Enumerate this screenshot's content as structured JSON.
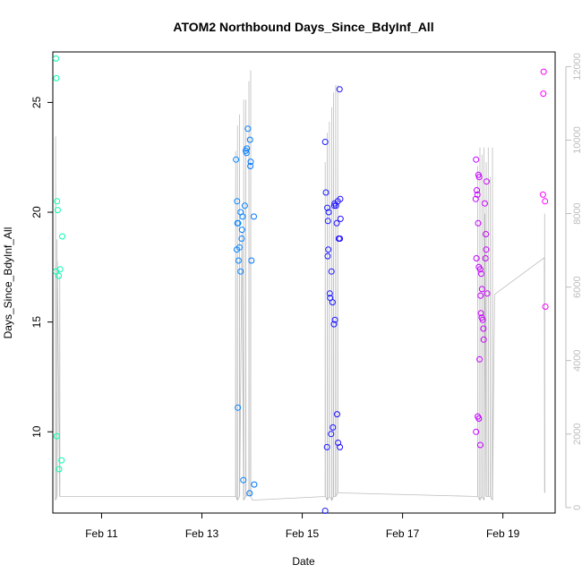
{
  "chart_data": {
    "type": "scatter",
    "title": "ATOM2 Northbound Days_Since_BdyInf_All",
    "xlabel": "Date",
    "ylabel": "Days_Since_BdyInf_All",
    "x_ticks": [
      "Feb 11",
      "Feb 13",
      "Feb 15",
      "Feb 17",
      "Feb 19"
    ],
    "xlim": [
      "Feb 10 00:40",
      "Feb 20 01:00"
    ],
    "ylim": [
      6.3,
      27.3
    ],
    "y_ticks": [
      "10",
      "15",
      "20",
      "25"
    ],
    "y2lim": [
      -150,
      12400
    ],
    "y2_ticks": [
      "0",
      "2000",
      "4000",
      "6000",
      "8000",
      "10000",
      "12000"
    ],
    "grid": false,
    "legend": "none",
    "colors": {
      "line": "#bdbdbd",
      "axis": "#000000",
      "right_axis": "#bdbdbd",
      "point_palette": [
        "#00ffaa",
        "#22ddff",
        "#0077ff",
        "#2200ff",
        "#aa00ff",
        "#ff00ff"
      ]
    },
    "line_anchors": [
      [
        "Feb 10 01:55",
        6600
      ],
      [
        "Feb 10 02:50",
        6700
      ],
      [
        "Feb 13 17:00",
        7100
      ],
      [
        "Feb 13 19:10",
        7500
      ],
      [
        "Feb 14 00:10",
        200
      ],
      [
        "Feb 15 13:00",
        7400
      ],
      [
        "Feb 15 17:00",
        10000
      ],
      [
        "Feb 18 15:20",
        8000
      ],
      [
        "Feb 18 20:00",
        5800
      ],
      [
        "Feb 19 19:50",
        6800
      ]
    ],
    "line_spikes": [
      [
        "Feb 10 02:00",
        10100,
        200
      ],
      [
        "Feb 10 02:40",
        7300,
        300
      ],
      [
        "Feb 10 04:00",
        6300,
        300
      ],
      [
        "Feb 13 16:10",
        9700,
        300
      ],
      [
        "Feb 13 17:00",
        10400,
        200
      ],
      [
        "Feb 13 18:00",
        10700,
        300
      ],
      [
        "Feb 13 20:00",
        11100,
        200
      ],
      [
        "Feb 13 21:00",
        11100,
        300
      ],
      [
        "Feb 13 22:30",
        11600,
        400
      ],
      [
        "Feb 13 23:20",
        11900,
        300
      ],
      [
        "Feb 15 11:00",
        9400,
        300
      ],
      [
        "Feb 15 12:00",
        10200,
        200
      ],
      [
        "Feb 15 13:00",
        10500,
        300
      ],
      [
        "Feb 15 14:10",
        10900,
        200
      ],
      [
        "Feb 15 15:00",
        11300,
        300
      ],
      [
        "Feb 15 16:00",
        11500,
        300
      ],
      [
        "Feb 15 17:00",
        11500,
        400
      ],
      [
        "Feb 18 12:00",
        9300,
        300
      ],
      [
        "Feb 18 13:00",
        9800,
        200
      ],
      [
        "Feb 18 14:00",
        9600,
        300
      ],
      [
        "Feb 18 15:00",
        9800,
        200
      ],
      [
        "Feb 18 16:00",
        9400,
        300
      ],
      [
        "Feb 18 17:00",
        9800,
        300
      ],
      [
        "Feb 18 18:00",
        9000,
        300
      ],
      [
        "Feb 18 19:00",
        9800,
        200
      ],
      [
        "Feb 19 20:00",
        8000,
        400
      ]
    ],
    "points": [
      [
        "Feb 10 02:10",
        27.0
      ],
      [
        "Feb 10 02:20",
        26.1
      ],
      [
        "Feb 10 02:40",
        20.5
      ],
      [
        "Feb 10 03:00",
        20.1
      ],
      [
        "Feb 10 05:10",
        18.9
      ],
      [
        "Feb 10 02:10",
        17.3
      ],
      [
        "Feb 10 04:10",
        17.4
      ],
      [
        "Feb 10 03:30",
        17.1
      ],
      [
        "Feb 10 02:30",
        9.8
      ],
      [
        "Feb 10 04:50",
        8.7
      ],
      [
        "Feb 10 03:40",
        8.3
      ],
      [
        "Feb 13 16:20",
        22.4
      ],
      [
        "Feb 13 16:50",
        20.5
      ],
      [
        "Feb 13 17:00",
        19.5
      ],
      [
        "Feb 13 17:20",
        19.5
      ],
      [
        "Feb 13 16:40",
        18.3
      ],
      [
        "Feb 13 18:00",
        18.4
      ],
      [
        "Feb 13 17:30",
        17.8
      ],
      [
        "Feb 13 18:30",
        17.3
      ],
      [
        "Feb 13 18:30",
        20.0
      ],
      [
        "Feb 13 19:30",
        19.8
      ],
      [
        "Feb 13 20:30",
        20.3
      ],
      [
        "Feb 13 19:10",
        19.2
      ],
      [
        "Feb 13 19:00",
        18.8
      ],
      [
        "Feb 13 21:00",
        22.8
      ],
      [
        "Feb 13 21:30",
        22.9
      ],
      [
        "Feb 13 22:00",
        23.8
      ],
      [
        "Feb 13 21:20",
        22.7
      ],
      [
        "Feb 13 23:00",
        23.3
      ],
      [
        "Feb 13 23:20",
        22.3
      ],
      [
        "Feb 13 23:10",
        22.1
      ],
      [
        "Feb 13 23:40",
        17.8
      ],
      [
        "Feb 14 00:50",
        19.8
      ],
      [
        "Feb 13 17:10",
        11.1
      ],
      [
        "Feb 13 19:50",
        7.8
      ],
      [
        "Feb 13 22:50",
        7.2
      ],
      [
        "Feb 14 01:00",
        7.6
      ],
      [
        "Feb 15 11:00",
        6.4
      ],
      [
        "Feb 15 11:50",
        9.3
      ],
      [
        "Feb 15 13:50",
        9.9
      ],
      [
        "Feb 15 14:40",
        10.2
      ],
      [
        "Feb 15 16:40",
        10.8
      ],
      [
        "Feb 15 17:10",
        9.5
      ],
      [
        "Feb 15 18:00",
        9.3
      ],
      [
        "Feb 15 11:00",
        23.2
      ],
      [
        "Feb 15 11:20",
        20.9
      ],
      [
        "Feb 15 12:00",
        20.2
      ],
      [
        "Feb 15 12:40",
        20.0
      ],
      [
        "Feb 15 12:20",
        19.6
      ],
      [
        "Feb 15 12:30",
        18.3
      ],
      [
        "Feb 15 12:10",
        18.0
      ],
      [
        "Feb 15 14:00",
        17.3
      ],
      [
        "Feb 15 13:10",
        16.3
      ],
      [
        "Feb 15 13:20",
        16.1
      ],
      [
        "Feb 15 14:30",
        15.9
      ],
      [
        "Feb 15 15:40",
        15.1
      ],
      [
        "Feb 15 15:10",
        14.9
      ],
      [
        "Feb 15 15:20",
        20.3
      ],
      [
        "Feb 15 15:30",
        20.4
      ],
      [
        "Feb 15 17:00",
        20.5
      ],
      [
        "Feb 15 16:10",
        20.3
      ],
      [
        "Feb 15 16:30",
        19.5
      ],
      [
        "Feb 15 17:30",
        18.8
      ],
      [
        "Feb 15 18:00",
        18.8
      ],
      [
        "Feb 15 18:20",
        19.7
      ],
      [
        "Feb 15 18:10",
        20.6
      ],
      [
        "Feb 15 17:50",
        25.6
      ],
      [
        "Feb 18 11:10",
        22.4
      ],
      [
        "Feb 18 11:30",
        21.0
      ],
      [
        "Feb 18 12:20",
        21.7
      ],
      [
        "Feb 18 12:40",
        21.6
      ],
      [
        "Feb 18 11:50",
        20.8
      ],
      [
        "Feb 18 11:00",
        20.6
      ],
      [
        "Feb 18 12:10",
        19.5
      ],
      [
        "Feb 18 11:20",
        17.9
      ],
      [
        "Feb 18 12:30",
        17.5
      ],
      [
        "Feb 18 13:10",
        17.4
      ],
      [
        "Feb 18 13:40",
        17.2
      ],
      [
        "Feb 18 14:00",
        16.5
      ],
      [
        "Feb 18 13:20",
        16.2
      ],
      [
        "Feb 18 13:30",
        15.4
      ],
      [
        "Feb 18 14:20",
        15.1
      ],
      [
        "Feb 18 13:50",
        15.2
      ],
      [
        "Feb 18 14:40",
        14.7
      ],
      [
        "Feb 18 14:50",
        14.2
      ],
      [
        "Feb 18 12:50",
        13.3
      ],
      [
        "Feb 18 12:00",
        10.7
      ],
      [
        "Feb 18 12:30",
        10.6
      ],
      [
        "Feb 18 11:10",
        10.0
      ],
      [
        "Feb 18 13:10",
        9.4
      ],
      [
        "Feb 18 15:20",
        20.4
      ],
      [
        "Feb 18 16:10",
        21.4
      ],
      [
        "Feb 18 15:50",
        19.0
      ],
      [
        "Feb 18 16:00",
        18.3
      ],
      [
        "Feb 18 15:40",
        17.9
      ],
      [
        "Feb 18 16:30",
        16.3
      ],
      [
        "Feb 19 19:30",
        26.4
      ],
      [
        "Feb 19 19:20",
        25.4
      ],
      [
        "Feb 19 19:10",
        20.8
      ],
      [
        "Feb 19 20:10",
        20.5
      ],
      [
        "Feb 19 20:20",
        15.7
      ]
    ]
  }
}
